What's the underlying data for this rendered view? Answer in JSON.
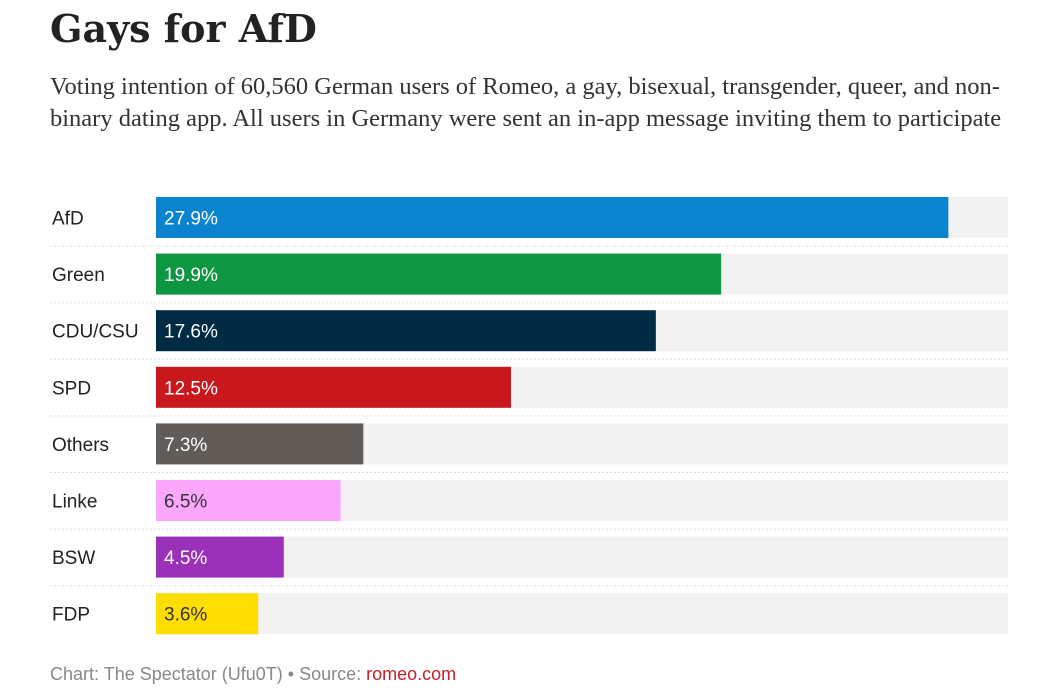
{
  "title": "Gays for AfD",
  "subtitle": "Voting intention of 60,560 German users of Romeo, a gay, bisexual, transgender, queer, and non-binary dating app. All users in Germany were sent an in-app message inviting them to participate",
  "footer": {
    "chart_credit": "Chart: The Spectator (Ufu0T)",
    "separator": " • ",
    "source_label": "Source: ",
    "source_link": "romeo.com"
  },
  "chart_data": {
    "type": "bar",
    "orientation": "horizontal",
    "title": "Gays for AfD",
    "xlabel": "",
    "ylabel": "",
    "xlim": [
      0,
      30
    ],
    "value_suffix": "%",
    "categories": [
      "AfD",
      "Green",
      "CDU/CSU",
      "SPD",
      "Others",
      "Linke",
      "BSW",
      "FDP"
    ],
    "values": [
      27.9,
      19.9,
      17.6,
      12.5,
      7.3,
      6.5,
      4.5,
      3.6
    ],
    "labels": [
      "27.9%",
      "19.9%",
      "17.6%",
      "12.5%",
      "7.3%",
      "6.5%",
      "4.5%",
      "3.6%"
    ],
    "colors": [
      "#0a84cf",
      "#0e9642",
      "#002b45",
      "#c8181e",
      "#625c58",
      "#fba7fb",
      "#9b31b8",
      "#fede00"
    ],
    "label_colors": [
      "#ffffff",
      "#ffffff",
      "#ffffff",
      "#ffffff",
      "#ffffff",
      "#333333",
      "#ffffff",
      "#333333"
    ],
    "track_color": "#f2f2f2",
    "divider_color": "#e0e0e0"
  }
}
